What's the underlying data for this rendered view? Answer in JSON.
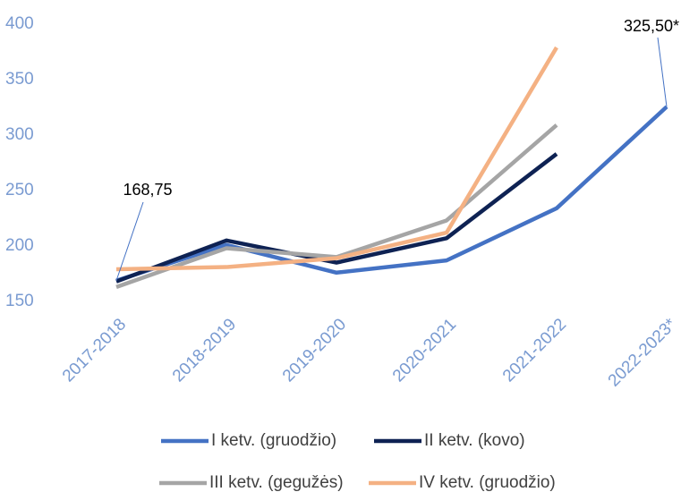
{
  "chart_data": {
    "type": "line",
    "categories": [
      "2017-2018",
      "2018-2019",
      "2019-2020",
      "2020-2021",
      "2021-2022",
      "2022-2023*"
    ],
    "series": [
      {
        "name": "I ketv. (gruodžio)",
        "color": "#4472c4",
        "values": [
          168.75,
          201,
          176,
          187,
          234,
          325.5
        ],
        "value_labels": [
          "168,75",
          null,
          null,
          null,
          null,
          "325,50*"
        ]
      },
      {
        "name": "II ketv. (kovo)",
        "color": "#0e2253",
        "values": [
          168,
          205,
          185,
          207,
          283,
          null
        ]
      },
      {
        "name": "III ketv. (gegužės)",
        "color": "#a5a5a5",
        "values": [
          163,
          198,
          190,
          223,
          309,
          null
        ]
      },
      {
        "name": "IV ketv. (gruodžio)",
        "color": "#f4b183",
        "values": [
          179,
          181,
          189,
          212,
          379,
          null
        ]
      }
    ],
    "ylim": [
      150,
      400
    ],
    "yticks": [
      150,
      200,
      250,
      300,
      350,
      400
    ]
  }
}
